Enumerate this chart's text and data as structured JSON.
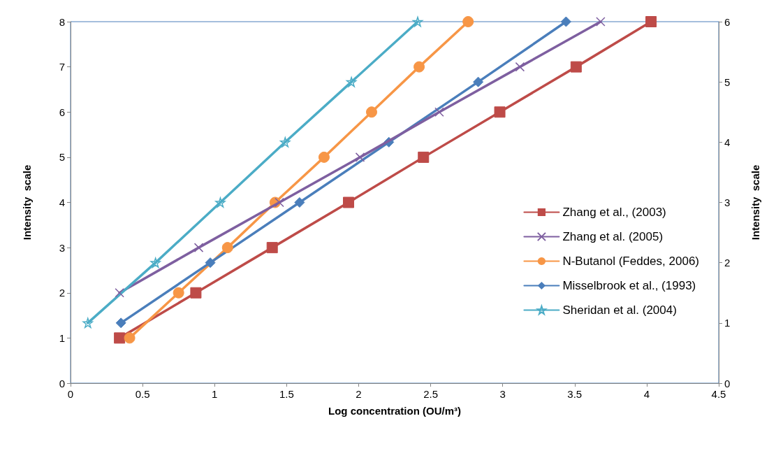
{
  "chart_data": {
    "type": "line",
    "xlabel": "Log concentration (OU/m³)",
    "ylabel": "Intensity  scale",
    "y2label": "Intensity  scale",
    "xlim": [
      0,
      4.5
    ],
    "xticks": [
      0,
      0.5,
      1,
      1.5,
      2,
      2.5,
      3,
      3.5,
      4,
      4.5
    ],
    "ylim": [
      0,
      8
    ],
    "yticks": [
      0,
      1,
      2,
      3,
      4,
      5,
      6,
      7,
      8
    ],
    "y2lim": [
      0,
      6
    ],
    "y2ticks": [
      0,
      1,
      2,
      3,
      4,
      5,
      6
    ],
    "grid": false,
    "legend": "right",
    "line_style": "solid",
    "series": [
      {
        "name": "Zhang et al., (2003)",
        "color": "#be4b48",
        "marker": "square",
        "x": [
          0.34,
          0.87,
          1.4,
          1.93,
          2.45,
          2.98,
          3.51,
          4.03
        ],
        "values": [
          1,
          2,
          3,
          4,
          5,
          6,
          7,
          8
        ]
      },
      {
        "name": "Zhang et al. (2005)",
        "color": "#7e5fa0",
        "marker": "cross",
        "x": [
          0.34,
          0.89,
          1.45,
          2.01,
          2.56,
          3.12,
          3.68
        ],
        "values": [
          2,
          3,
          4,
          5,
          6,
          7,
          8
        ]
      },
      {
        "name": "N-Butanol (Feddes, 2006)",
        "color": "#f79646",
        "marker": "circle",
        "x": [
          0.41,
          0.75,
          1.09,
          1.42,
          1.76,
          2.09,
          2.42,
          2.76
        ],
        "values": [
          1,
          2,
          3,
          4,
          5,
          6,
          7,
          8
        ]
      },
      {
        "name": "Misselbrook et al., (1993)",
        "color": "#4a7ebb",
        "marker": "diamond",
        "axis": "y2",
        "x": [
          0.35,
          0.97,
          1.59,
          2.21,
          2.83,
          3.44
        ],
        "values": [
          1,
          2,
          3,
          4,
          5,
          6
        ]
      },
      {
        "name": "Sheridan et al. (2004)",
        "color": "#4bacc6",
        "marker": "star",
        "axis": "y2",
        "x": [
          0.12,
          0.59,
          1.04,
          1.49,
          1.95,
          2.41
        ],
        "values": [
          1,
          2,
          3,
          4,
          5,
          6
        ]
      }
    ]
  }
}
